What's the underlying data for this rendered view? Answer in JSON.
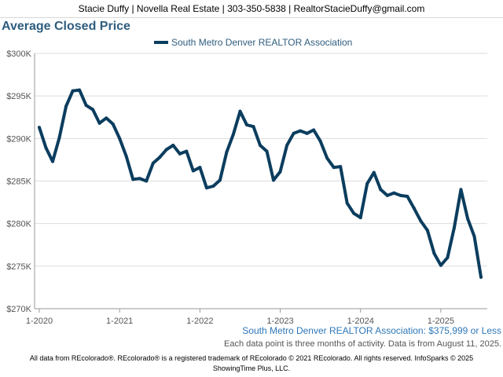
{
  "header": {
    "text": "Stacie Duffy | Novella Real Estate | 303-350-5838 | RealtorStacieDuffy@gmail.com"
  },
  "footer": {
    "series_note": "South Metro Denver REALTOR Association: $375,999 or Less",
    "data_note": "Each data point is three months of activity. Data is from August 11, 2025.",
    "copyright_line1": "All data from REcolorado®. REcolorado® is a registered trademark of REcolorado © 2021 REcolorado. All rights reserved. InfoSparks © 2025",
    "copyright_line2": "ShowingTime Plus, LLC."
  },
  "colors": {
    "series": "#0b3d5e",
    "title": "#2e5d7e",
    "grid": "#dddddd"
  },
  "chart_data": {
    "type": "line",
    "title": "Average Closed Price",
    "legend": "top",
    "grid": true,
    "ylim": [
      270000,
      300000
    ],
    "yticks": [
      {
        "value": 270000,
        "label": "$270K"
      },
      {
        "value": 275000,
        "label": "$275K"
      },
      {
        "value": 280000,
        "label": "$280K"
      },
      {
        "value": 285000,
        "label": "$285K"
      },
      {
        "value": 290000,
        "label": "$290K"
      },
      {
        "value": 295000,
        "label": "$295K"
      },
      {
        "value": 300000,
        "label": "$300K"
      }
    ],
    "xticks": [
      {
        "index": 0,
        "label": "1-2020"
      },
      {
        "index": 12,
        "label": "1-2021"
      },
      {
        "index": 24,
        "label": "1-2022"
      },
      {
        "index": 36,
        "label": "1-2023"
      },
      {
        "index": 48,
        "label": "1-2024"
      },
      {
        "index": 60,
        "label": "1-2025"
      }
    ],
    "x": [
      "1-2020",
      "2-2020",
      "3-2020",
      "4-2020",
      "5-2020",
      "6-2020",
      "7-2020",
      "8-2020",
      "9-2020",
      "10-2020",
      "11-2020",
      "12-2020",
      "1-2021",
      "2-2021",
      "3-2021",
      "4-2021",
      "5-2021",
      "6-2021",
      "7-2021",
      "8-2021",
      "9-2021",
      "10-2021",
      "11-2021",
      "12-2021",
      "1-2022",
      "2-2022",
      "3-2022",
      "4-2022",
      "5-2022",
      "6-2022",
      "7-2022",
      "8-2022",
      "9-2022",
      "10-2022",
      "11-2022",
      "12-2022",
      "1-2023",
      "2-2023",
      "3-2023",
      "4-2023",
      "5-2023",
      "6-2023",
      "7-2023",
      "8-2023",
      "9-2023",
      "10-2023",
      "11-2023",
      "12-2023",
      "1-2024",
      "2-2024",
      "3-2024",
      "4-2024",
      "5-2024",
      "6-2024",
      "7-2024",
      "8-2024",
      "9-2024",
      "10-2024",
      "11-2024",
      "12-2024",
      "1-2025",
      "2-2025",
      "3-2025",
      "4-2025",
      "5-2025",
      "6-2025",
      "7-2025"
    ],
    "series": [
      {
        "name": "South Metro Denver REALTOR Association",
        "values": [
          291300,
          288900,
          287300,
          290100,
          293800,
          295600,
          295700,
          293900,
          293400,
          291800,
          292400,
          291700,
          290000,
          287900,
          285200,
          285300,
          285000,
          287100,
          287800,
          288700,
          289200,
          288200,
          288500,
          286200,
          286600,
          284200,
          284400,
          285100,
          288400,
          290500,
          293200,
          291600,
          291400,
          289200,
          288500,
          285100,
          286100,
          289200,
          290600,
          290900,
          290600,
          291000,
          289700,
          287700,
          286600,
          286700,
          282400,
          281200,
          280700,
          284700,
          286000,
          284000,
          283300,
          283600,
          283300,
          283200,
          281800,
          280300,
          279200,
          276500,
          275100,
          276000,
          279500,
          284000,
          280600,
          278500,
          273700
        ]
      }
    ]
  }
}
